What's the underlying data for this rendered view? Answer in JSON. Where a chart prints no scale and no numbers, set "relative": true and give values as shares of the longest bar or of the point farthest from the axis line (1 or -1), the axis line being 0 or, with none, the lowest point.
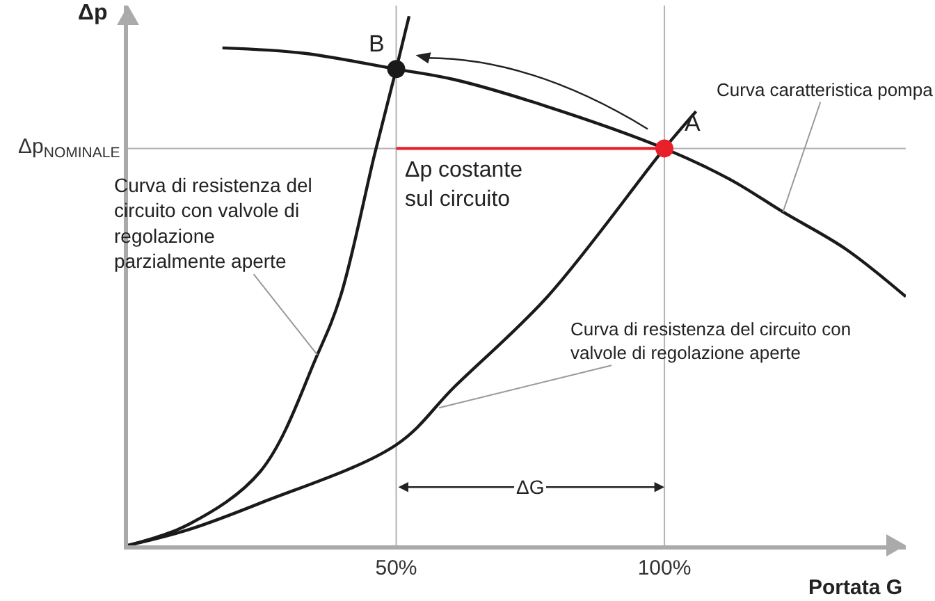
{
  "chart_data": {
    "type": "line",
    "relative": true,
    "xlabel": "Portata G",
    "ylabel": "Δp",
    "xlim": [
      0,
      145
    ],
    "xticks": [
      {
        "value": 50,
        "label": "50%"
      },
      {
        "value": 100,
        "label": "100%"
      }
    ],
    "tick_labels": "x",
    "grid": false,
    "marker": "none",
    "line_style": "solid",
    "series": [
      {
        "color": "#1a1a1a",
        "x": [
          17.6,
          32.7,
          50,
          60.9,
          77.9,
          100,
          112.5,
          122.1,
          133.8,
          145
        ],
        "values": [
          0.94,
          0.93,
          0.9,
          0.88,
          0.83,
          0.75,
          0.69,
          0.63,
          0.56,
          0.47
        ]
      },
      {
        "color": "#1a1a1a",
        "x": [
          0,
          11.4,
          24.7,
          50,
          60.9,
          78.2,
          100,
          105.9
        ],
        "values": [
          0,
          0.03,
          0.08,
          0.19,
          0.3,
          0.47,
          0.75,
          0.82
        ]
      },
      {
        "color": "#1a1a1a",
        "x": [
          0,
          11.4,
          24.7,
          35.3,
          39.6,
          46.0,
          50,
          52.4
        ],
        "values": [
          0,
          0.04,
          0.14,
          0.36,
          0.47,
          0.74,
          0.9,
          1.0
        ]
      },
      {
        "color": "#e8202a",
        "x": [
          50,
          100
        ],
        "values": [
          0.75,
          0.75
        ]
      },
      {
        "type": "scatter",
        "marker": "circle",
        "x": [
          50,
          100
        ],
        "values": [
          0.9,
          0.75
        ],
        "colors": [
          "#1a1a1a",
          "#e8202a"
        ]
      }
    ],
    "ref_lines": [
      {
        "axis": "y",
        "value": 0.75,
        "label": "Δp$_{NOMINALE}$",
        "color": "#b3b3b3"
      },
      {
        "axis": "x",
        "value": 50,
        "color": "#b3b3b3"
      },
      {
        "axis": "x",
        "value": 100,
        "color": "#b3b3b3"
      }
    ],
    "annotations": [
      {
        "text": "B",
        "x": 50,
        "y": 0.9
      },
      {
        "text": "A",
        "x": 100,
        "y": 0.75
      },
      {
        "text": "Δp costante sul circuito",
        "x": 75,
        "y": 0.75
      },
      {
        "text": "Curva caratteristica pompa",
        "x": 122.1,
        "y": 0.63
      },
      {
        "text": "Curva di resistenza del circuito con valvole di regolazione parzialmente aperte",
        "x": 35.3,
        "y": 0.36
      },
      {
        "text": "Curva di resistenza del circuito con valvole di regolazione aperte",
        "x": 58,
        "y": 0.26
      },
      {
        "text": "ΔG",
        "x": 75,
        "y": 0.11
      }
    ]
  }
}
